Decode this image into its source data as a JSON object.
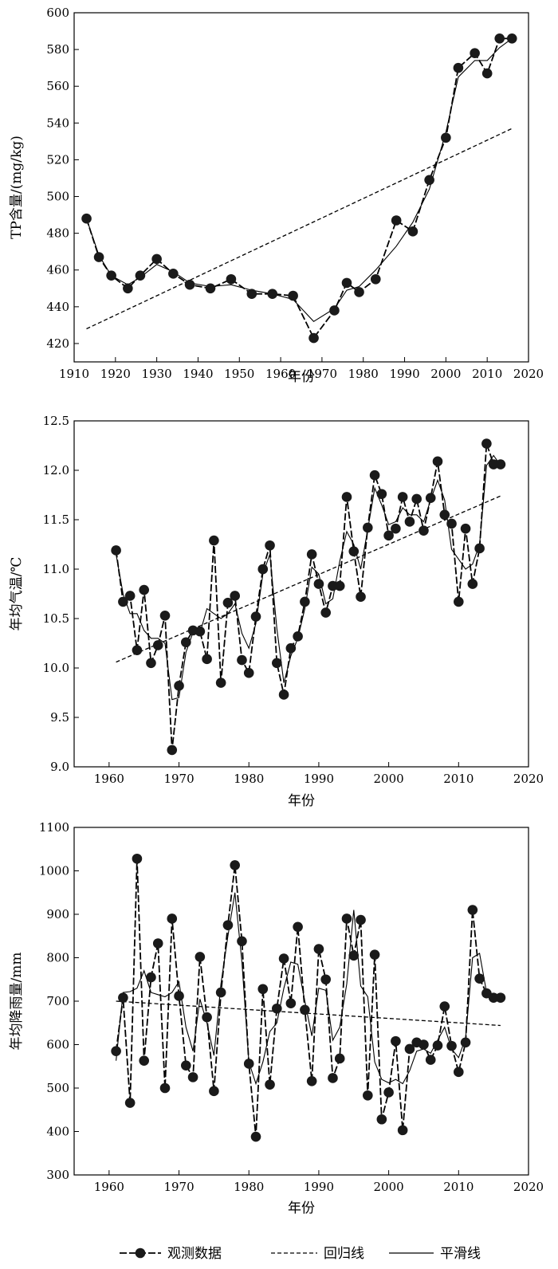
{
  "legend": {
    "observed": "观测数据",
    "regression": "回归线",
    "smooth": "平滑线"
  },
  "colors": {
    "ink": "#000000",
    "marker": "#1a1a1a",
    "background": "#ffffff"
  },
  "chart_data": [
    {
      "id": "tp",
      "type": "line",
      "xlabel": "年份",
      "ylabel": "TP含量/(mg/kg)",
      "xlim": [
        1910,
        2020
      ],
      "ylim": [
        410,
        600
      ],
      "xticks": [
        1910,
        1920,
        1930,
        1940,
        1950,
        1960,
        1970,
        1980,
        1990,
        2000,
        2010,
        2020
      ],
      "yticks": [
        420,
        440,
        460,
        480,
        500,
        520,
        540,
        560,
        580,
        600
      ],
      "series": [
        {
          "name": "观测数据",
          "x": [
            1913,
            1916,
            1919,
            1923,
            1926,
            1930,
            1934,
            1938,
            1943,
            1948,
            1953,
            1958,
            1963,
            1968,
            1973,
            1976,
            1979,
            1983,
            1988,
            1992,
            1996,
            2000,
            2003,
            2007,
            2010,
            2013,
            2016
          ],
          "y": [
            488,
            467,
            457,
            450,
            457,
            466,
            458,
            452,
            450,
            455,
            447,
            447,
            446,
            423,
            438,
            453,
            448,
            455,
            487,
            481,
            509,
            532,
            570,
            578,
            567,
            586,
            586
          ]
        },
        {
          "name": "回归线",
          "x": [
            1913,
            2016
          ],
          "y": [
            428,
            537
          ]
        },
        {
          "name": "平滑线",
          "x": [
            1913,
            1916,
            1919,
            1923,
            1926,
            1930,
            1934,
            1938,
            1943,
            1948,
            1953,
            1958,
            1963,
            1968,
            1973,
            1976,
            1979,
            1983,
            1988,
            1992,
            1996,
            2000,
            2003,
            2007,
            2010,
            2013,
            2016
          ],
          "y": [
            488,
            468,
            457,
            452,
            456,
            463,
            459,
            453,
            451,
            452,
            449,
            447,
            444,
            432,
            439,
            449,
            451,
            460,
            473,
            486,
            504,
            535,
            565,
            574,
            574,
            581,
            586
          ]
        }
      ]
    },
    {
      "id": "temp",
      "type": "line",
      "xlabel": "年份",
      "ylabel": "年均气温/℃",
      "xlim": [
        1955,
        2020
      ],
      "ylim": [
        9.0,
        12.5
      ],
      "xticks": [
        1960,
        1970,
        1980,
        1990,
        2000,
        2010,
        2020
      ],
      "yticks": [
        9.0,
        9.5,
        10.0,
        10.5,
        11.0,
        11.5,
        12.0,
        12.5
      ],
      "ytick_labels": [
        "9.0",
        "9.5",
        "10.0",
        "10.5",
        "11.0",
        "11.5",
        "12.0",
        "12.5"
      ],
      "series": [
        {
          "name": "观测数据",
          "x": [
            1961,
            1962,
            1963,
            1964,
            1965,
            1966,
            1967,
            1968,
            1969,
            1970,
            1971,
            1972,
            1973,
            1974,
            1975,
            1976,
            1977,
            1978,
            1979,
            1980,
            1981,
            1982,
            1983,
            1984,
            1985,
            1986,
            1987,
            1988,
            1989,
            1990,
            1991,
            1992,
            1993,
            1994,
            1995,
            1996,
            1997,
            1998,
            1999,
            2000,
            2001,
            2002,
            2003,
            2004,
            2005,
            2006,
            2007,
            2008,
            2009,
            2010,
            2011,
            2012,
            2013,
            2014,
            2015,
            2016
          ],
          "y": [
            11.19,
            10.67,
            10.73,
            10.18,
            10.79,
            10.05,
            10.23,
            10.53,
            9.17,
            9.82,
            10.26,
            10.38,
            10.37,
            10.09,
            11.29,
            9.85,
            10.66,
            10.73,
            10.08,
            9.95,
            10.52,
            11.0,
            11.24,
            10.05,
            9.73,
            10.2,
            10.32,
            10.67,
            11.15,
            10.85,
            10.56,
            10.83,
            10.83,
            11.73,
            11.18,
            10.72,
            11.42,
            11.95,
            11.76,
            11.34,
            11.41,
            11.73,
            11.48,
            11.71,
            11.39,
            11.72,
            12.09,
            11.55,
            11.46,
            10.67,
            11.41,
            10.85,
            11.21,
            12.27,
            12.06,
            12.06
          ]
        },
        {
          "name": "回归线",
          "x": [
            1961,
            2016
          ],
          "y": [
            10.06,
            11.74
          ]
        },
        {
          "name": "平滑线",
          "x": [
            1961,
            1962,
            1963,
            1964,
            1965,
            1966,
            1967,
            1968,
            1969,
            1970,
            1971,
            1972,
            1973,
            1974,
            1975,
            1976,
            1977,
            1978,
            1979,
            1980,
            1981,
            1982,
            1983,
            1984,
            1985,
            1986,
            1987,
            1988,
            1989,
            1990,
            1991,
            1992,
            1993,
            1994,
            1995,
            1996,
            1997,
            1998,
            1999,
            2000,
            2001,
            2002,
            2003,
            2004,
            2005,
            2006,
            2007,
            2008,
            2009,
            2010,
            2011,
            2012,
            2013,
            2014,
            2015,
            2016
          ],
          "y": [
            11.15,
            10.75,
            10.55,
            10.55,
            10.38,
            10.3,
            10.3,
            10.25,
            9.68,
            9.7,
            10.16,
            10.36,
            10.35,
            10.6,
            10.55,
            10.5,
            10.55,
            10.65,
            10.35,
            10.2,
            10.45,
            10.95,
            11.15,
            10.4,
            9.85,
            10.12,
            10.3,
            10.6,
            11.02,
            10.95,
            10.65,
            10.7,
            11.08,
            11.38,
            11.25,
            11.0,
            11.4,
            11.82,
            11.65,
            11.45,
            11.48,
            11.62,
            11.55,
            11.55,
            11.48,
            11.7,
            11.9,
            11.7,
            11.2,
            11.1,
            11.0,
            11.05,
            11.25,
            12.05,
            12.15,
            12.05
          ]
        }
      ]
    },
    {
      "id": "precip",
      "type": "line",
      "xlabel": "年份",
      "ylabel": "年均降雨量/mm",
      "xlim": [
        1955,
        2020
      ],
      "ylim": [
        300,
        1100
      ],
      "xticks": [
        1960,
        1970,
        1980,
        1990,
        2000,
        2010,
        2020
      ],
      "yticks": [
        300,
        400,
        500,
        600,
        700,
        800,
        900,
        1000,
        1100
      ],
      "series": [
        {
          "name": "观测数据",
          "x": [
            1961,
            1962,
            1963,
            1964,
            1965,
            1966,
            1967,
            1968,
            1969,
            1970,
            1971,
            1972,
            1973,
            1974,
            1975,
            1976,
            1977,
            1978,
            1979,
            1980,
            1981,
            1982,
            1983,
            1984,
            1985,
            1986,
            1987,
            1988,
            1989,
            1990,
            1991,
            1992,
            1993,
            1994,
            1995,
            1996,
            1997,
            1998,
            1999,
            2000,
            2001,
            2002,
            2003,
            2004,
            2005,
            2006,
            2007,
            2008,
            2009,
            2010,
            2011,
            2012,
            2013,
            2014,
            2015,
            2016
          ],
          "y": [
            585,
            708,
            466,
            1028,
            563,
            755,
            833,
            500,
            890,
            712,
            552,
            525,
            802,
            663,
            493,
            720,
            875,
            1013,
            838,
            556,
            388,
            728,
            508,
            683,
            798,
            695,
            871,
            680,
            516,
            820,
            750,
            523,
            568,
            890,
            805,
            887,
            483,
            807,
            428,
            490,
            608,
            403,
            590,
            605,
            600,
            565,
            598,
            688,
            597,
            537,
            605,
            910,
            752,
            718,
            708,
            708
          ]
        },
        {
          "name": "回归线",
          "x": [
            1961,
            2016
          ],
          "y": [
            700,
            644
          ]
        },
        {
          "name": "平滑线",
          "x": [
            1961,
            1962,
            1963,
            1964,
            1965,
            1966,
            1967,
            1968,
            1969,
            1970,
            1971,
            1972,
            1973,
            1974,
            1975,
            1976,
            1977,
            1978,
            1979,
            1980,
            1981,
            1982,
            1983,
            1984,
            1985,
            1986,
            1987,
            1988,
            1989,
            1990,
            1991,
            1992,
            1993,
            1994,
            1995,
            1996,
            1997,
            1998,
            1999,
            2000,
            2001,
            2002,
            2003,
            2004,
            2005,
            2006,
            2007,
            2008,
            2009,
            2010,
            2011,
            2012,
            2013,
            2014,
            2015,
            2016
          ],
          "y": [
            563,
            720,
            722,
            730,
            770,
            720,
            715,
            710,
            720,
            745,
            640,
            585,
            705,
            650,
            575,
            740,
            850,
            950,
            790,
            560,
            510,
            560,
            630,
            650,
            730,
            790,
            785,
            700,
            620,
            730,
            725,
            610,
            640,
            740,
            910,
            735,
            710,
            560,
            520,
            512,
            520,
            510,
            540,
            585,
            590,
            580,
            610,
            640,
            590,
            570,
            615,
            800,
            810,
            720,
            700,
            700
          ]
        }
      ]
    }
  ]
}
